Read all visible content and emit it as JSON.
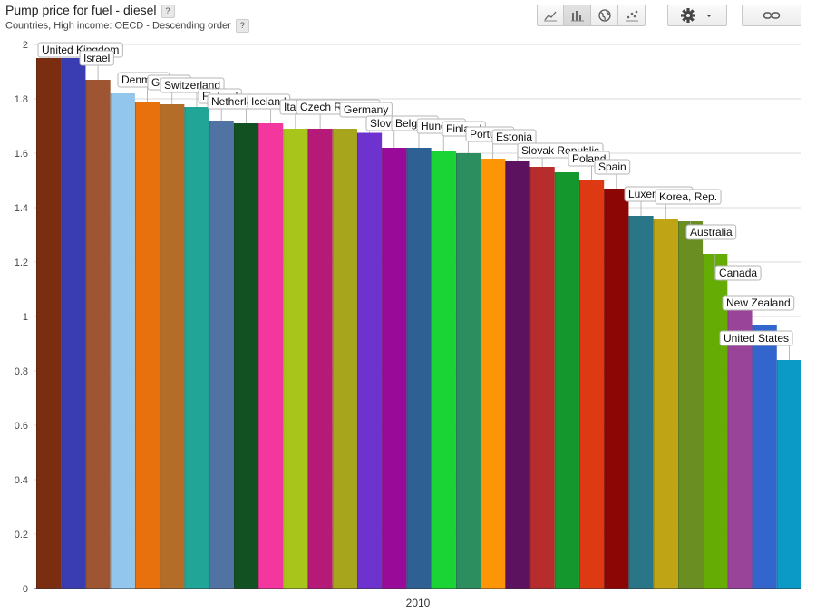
{
  "header": {
    "title": "Pump price for fuel - diesel",
    "subtitle": "Countries, High income: OECD - Descending order",
    "help_label": "?"
  },
  "toolbar": {
    "chart_types": [
      {
        "icon": "line-chart-icon",
        "active": false
      },
      {
        "icon": "bar-chart-icon",
        "active": true
      },
      {
        "icon": "globe-icon",
        "active": false
      },
      {
        "icon": "scatter-chart-icon",
        "active": false
      }
    ],
    "settings_icon": "gear-icon",
    "settings_dropdown_icon": "chevron-down-icon",
    "link_icon": "link-icon"
  },
  "chart_data": {
    "type": "bar",
    "title": "Pump price for fuel - diesel",
    "subtitle": "Countries, High income: OECD - Descending order",
    "xlabel": "2010",
    "ylabel": "",
    "ylim": [
      0,
      2
    ],
    "yticks": [
      0,
      0.2,
      0.4,
      0.6,
      0.8,
      1,
      1.2,
      1.4,
      1.6,
      1.8,
      2
    ],
    "grid": true,
    "labels_visible": [
      "United Kingdom",
      "Israel",
      "Denmark",
      "Greece",
      "Switzerland",
      "Finland",
      "Netherlands",
      "Iceland",
      "Italy",
      "Czech Republic",
      "Germany",
      "Slovenia",
      "Belgium",
      "Hungary",
      "Finland",
      "Portugal",
      "Estonia",
      "Slovak Republic",
      "Poland",
      "Spain",
      "Luxembourg",
      "Korea, Rep.",
      "Australia",
      "Canada",
      "New Zealand",
      "United States"
    ],
    "bars": [
      {
        "label": "United Kingdom",
        "value": 1.95,
        "color": "#7b2d12"
      },
      {
        "label": "",
        "value": 1.95,
        "color": "#3a3db1"
      },
      {
        "label": "Israel",
        "value": 1.87,
        "color": "#9e5531"
      },
      {
        "label": "",
        "value": 1.82,
        "color": "#93c6ec"
      },
      {
        "label": "Denmark",
        "value": 1.79,
        "color": "#e8700d"
      },
      {
        "label": "Greece",
        "value": 1.78,
        "color": "#b46d28"
      },
      {
        "label": "Switzerland",
        "value": 1.77,
        "color": "#21a597"
      },
      {
        "label": "Finland",
        "value": 1.72,
        "color": "#5073a3"
      },
      {
        "label": "Netherlands",
        "value": 1.71,
        "color": "#125222"
      },
      {
        "label": "Iceland",
        "value": 1.71,
        "color": "#f4369f"
      },
      {
        "label": "Italy",
        "value": 1.69,
        "color": "#a7c51a"
      },
      {
        "label": "Czech Republic",
        "value": 1.69,
        "color": "#b61a78"
      },
      {
        "label": "",
        "value": 1.69,
        "color": "#a6a51b"
      },
      {
        "label": "Germany",
        "value": 1.675,
        "color": "#6e33cf"
      },
      {
        "label": "Slovenia",
        "value": 1.62,
        "color": "#990a99"
      },
      {
        "label": "Belgium",
        "value": 1.62,
        "color": "#2e6094"
      },
      {
        "label": "Hungary",
        "value": 1.61,
        "color": "#1ad335"
      },
      {
        "label": "Finland",
        "value": 1.6,
        "color": "#2c8e5e"
      },
      {
        "label": "Portugal",
        "value": 1.58,
        "color": "#fd9507"
      },
      {
        "label": "Estonia",
        "value": 1.57,
        "color": "#5d125f"
      },
      {
        "label": "Slovak Republic",
        "value": 1.55,
        "color": "#b72c2c"
      },
      {
        "label": "",
        "value": 1.53,
        "color": "#14972c"
      },
      {
        "label": "Poland",
        "value": 1.5,
        "color": "#dd3a14"
      },
      {
        "label": "Spain",
        "value": 1.47,
        "color": "#8c0606"
      },
      {
        "label": "Luxembourg",
        "value": 1.37,
        "color": "#2a7689"
      },
      {
        "label": "Korea, Rep.",
        "value": 1.36,
        "color": "#bfa515"
      },
      {
        "label": "Australia",
        "value": 1.35,
        "color": "#6b8e22"
      },
      {
        "label": "Canada",
        "value": 1.23,
        "color": "#65ad04"
      },
      {
        "label": "New Zealand",
        "value": 1.03,
        "color": "#994499"
      },
      {
        "label": "",
        "value": 0.97,
        "color": "#3366cc"
      },
      {
        "label": "United States",
        "value": 0.84,
        "color": "#0b99c6"
      }
    ],
    "callouts": [
      {
        "text": "United Kingdom",
        "value": 1.98
      },
      {
        "text": "Israel",
        "value": 1.95
      },
      {
        "text": "Denmark",
        "value": 1.87
      },
      {
        "text": "Greece",
        "value": 1.86
      },
      {
        "text": "Switzerland",
        "value": 1.85
      },
      {
        "text": "Finland",
        "value": 1.81
      },
      {
        "text": "Netherlands",
        "value": 1.79
      },
      {
        "text": "Iceland",
        "value": 1.79
      },
      {
        "text": "Italy",
        "value": 1.77
      },
      {
        "text": "Czech Republic",
        "value": 1.77
      },
      {
        "text": "Germany",
        "value": 1.76
      },
      {
        "text": "Slovenia",
        "value": 1.71
      },
      {
        "text": "Belgium",
        "value": 1.71
      },
      {
        "text": "Hungary",
        "value": 1.7
      },
      {
        "text": "Finland",
        "value": 1.69
      },
      {
        "text": "Portugal",
        "value": 1.67
      },
      {
        "text": "Estonia",
        "value": 1.66
      },
      {
        "text": "Slovak Republic",
        "value": 1.61
      },
      {
        "text": "Poland",
        "value": 1.58
      },
      {
        "text": "Spain",
        "value": 1.55
      },
      {
        "text": "Luxembourg",
        "value": 1.45
      },
      {
        "text": "Korea, Rep.",
        "value": 1.44
      },
      {
        "text": "Australia",
        "value": 1.31
      },
      {
        "text": "Canada",
        "value": 1.16
      },
      {
        "text": "New Zealand",
        "value": 1.05
      },
      {
        "text": "United States",
        "value": 0.92
      }
    ]
  }
}
